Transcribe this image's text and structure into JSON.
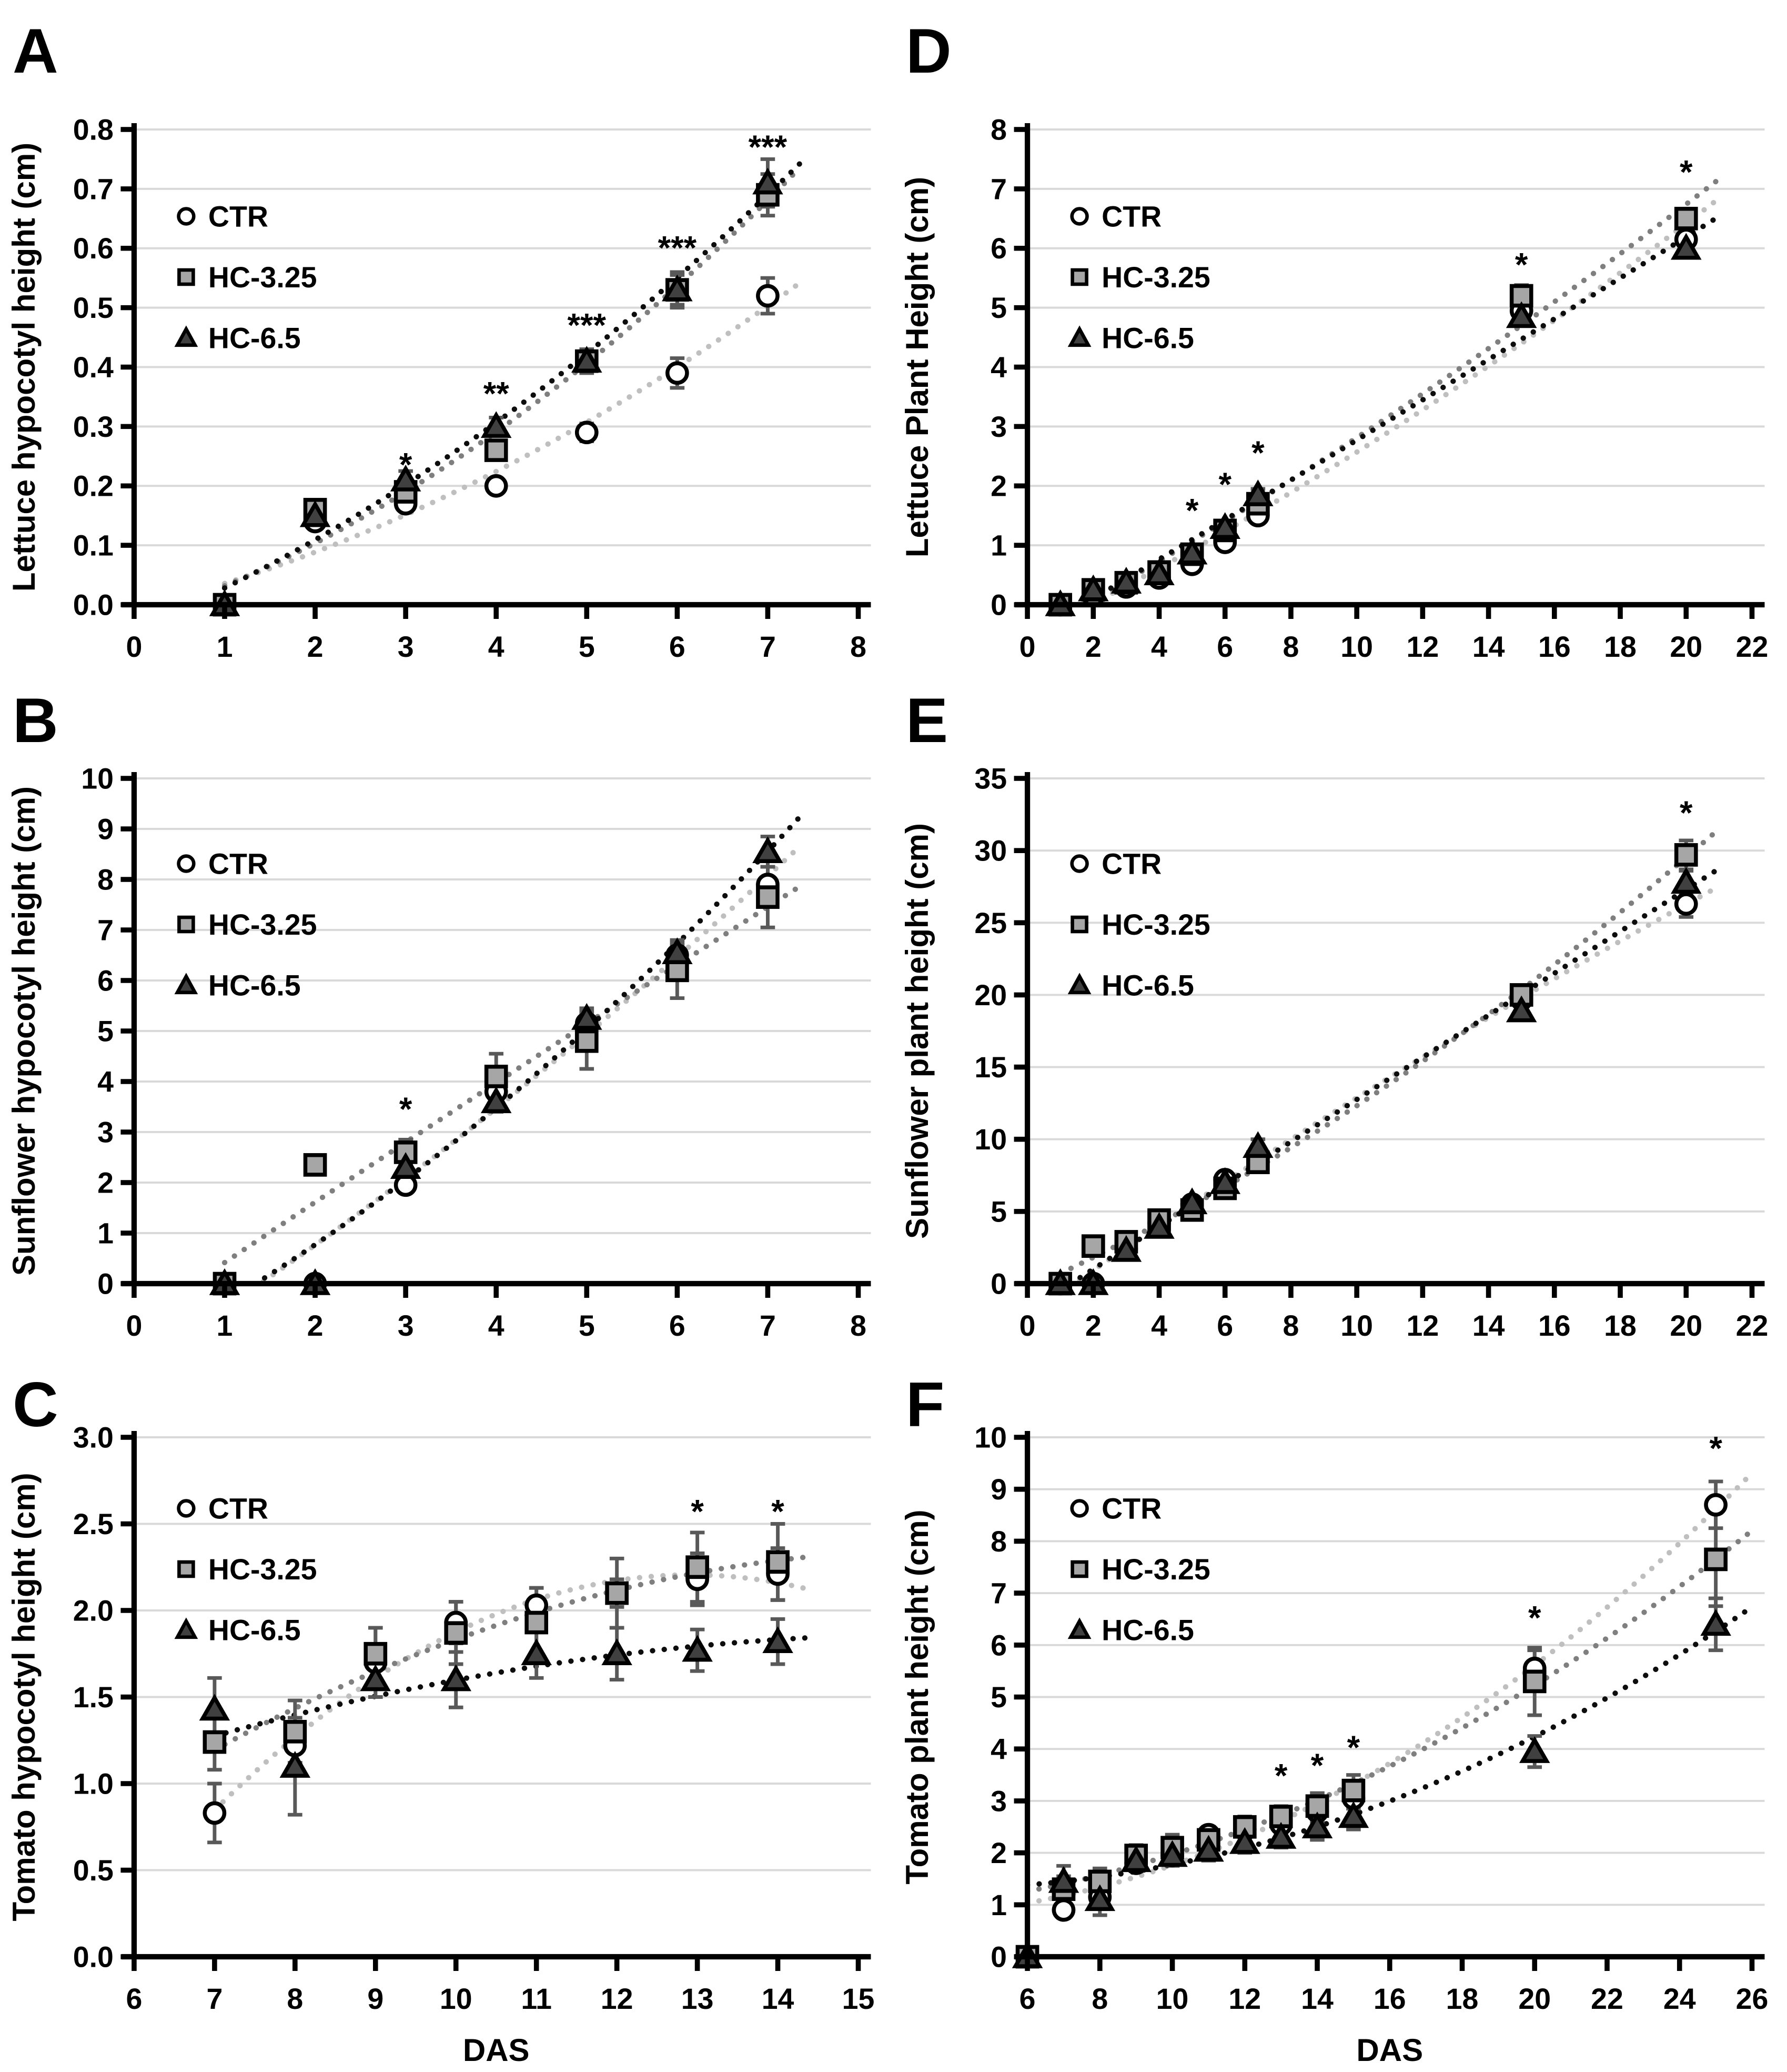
{
  "figure_title": "",
  "legend_labels": [
    "CTR",
    "HC-3.25",
    "HC-6.5"
  ],
  "colors": {
    "background": "#ffffff",
    "axis": "#000000",
    "gridline": "#d9d9d9",
    "error_bar": "#595959",
    "circle_fill": "#ffffff",
    "square_fill": "#a6a6a6",
    "triangle_fill": "#404040",
    "marker_stroke": "#000000",
    "trend_ctr": "#bfbfbf",
    "trend_hc325": "#7f7f7f",
    "trend_hc65": "#0d0d0d"
  },
  "chart_data": [
    {
      "panel_label": "A",
      "type": "scatter",
      "row": 1,
      "ylabel": "Lettuce hypocotyl height (cm)",
      "xlabel": "",
      "xlim": [
        0,
        8
      ],
      "xtick_step": 1,
      "ylim": [
        0,
        0.8
      ],
      "ytick_step": 0.1,
      "ydecimals": 1,
      "fit_exclude_zero": false,
      "series": [
        {
          "name": "CTR",
          "marker": "circle",
          "x": [
            1,
            2,
            3,
            4,
            5,
            6,
            7
          ],
          "y": [
            0,
            0.14,
            0.17,
            0.2,
            0.29,
            0.39,
            0.52
          ],
          "err": [
            0,
            0,
            0.012,
            0.012,
            0.015,
            0.025,
            0.03
          ]
        },
        {
          "name": "HC-3.25",
          "marker": "square",
          "x": [
            1,
            2,
            3,
            4,
            5,
            6,
            7
          ],
          "y": [
            0,
            0.16,
            0.19,
            0.26,
            0.41,
            0.53,
            0.69
          ],
          "err": [
            0,
            0,
            0.012,
            0.015,
            0.02,
            0.025,
            0.035
          ]
        },
        {
          "name": "HC-6.5",
          "marker": "triangle",
          "x": [
            1,
            2,
            3,
            4,
            5,
            6,
            7
          ],
          "y": [
            0,
            0.15,
            0.21,
            0.3,
            0.41,
            0.53,
            0.71
          ],
          "err": [
            0,
            0,
            0.015,
            0.015,
            0.02,
            0.03,
            0.04
          ]
        }
      ],
      "annotations": [
        {
          "x": 3,
          "y": 0.235,
          "text": "*"
        },
        {
          "x": 4,
          "y": 0.355,
          "text": "**"
        },
        {
          "x": 5,
          "y": 0.47,
          "text": "***"
        },
        {
          "x": 6,
          "y": 0.6,
          "text": "***"
        },
        {
          "x": 7,
          "y": 0.77,
          "text": "***"
        }
      ]
    },
    {
      "panel_label": "D",
      "type": "scatter",
      "row": 1,
      "ylabel": "Lettuce Plant Height (cm)",
      "xlabel": "",
      "xlim": [
        0,
        22
      ],
      "xtick_step": 2,
      "ylim": [
        0,
        8
      ],
      "ytick_step": 1,
      "ydecimals": 0,
      "fit_exclude_zero": false,
      "series": [
        {
          "name": "CTR",
          "marker": "circle",
          "x": [
            1,
            2,
            3,
            4,
            5,
            6,
            7,
            15,
            20
          ],
          "y": [
            0,
            0.15,
            0.3,
            0.45,
            0.68,
            1.05,
            1.5,
            4.95,
            6.15
          ],
          "err": [
            0,
            0,
            0,
            0.04,
            0.05,
            0.06,
            0.08,
            0.12,
            0.1
          ]
        },
        {
          "name": "HC-3.25",
          "marker": "square",
          "x": [
            1,
            2,
            3,
            4,
            5,
            6,
            7,
            15,
            20
          ],
          "y": [
            0,
            0.25,
            0.37,
            0.55,
            0.85,
            1.25,
            1.7,
            5.2,
            6.5
          ],
          "err": [
            0,
            0,
            0,
            0.04,
            0.05,
            0.06,
            0.08,
            0.18,
            0.12
          ]
        },
        {
          "name": "HC-6.5",
          "marker": "triangle",
          "x": [
            1,
            2,
            3,
            4,
            5,
            6,
            7,
            15,
            20
          ],
          "y": [
            0,
            0.25,
            0.38,
            0.52,
            0.87,
            1.3,
            1.85,
            4.85,
            6.0
          ],
          "err": [
            0,
            0,
            0,
            0.04,
            0.05,
            0.07,
            0.1,
            0.12,
            0.1
          ]
        }
      ],
      "annotations": [
        {
          "x": 5,
          "y": 1.58,
          "text": "*"
        },
        {
          "x": 6,
          "y": 2.02,
          "text": "*"
        },
        {
          "x": 7,
          "y": 2.55,
          "text": "*"
        },
        {
          "x": 15,
          "y": 5.72,
          "text": "*"
        },
        {
          "x": 20,
          "y": 7.28,
          "text": "*"
        }
      ]
    },
    {
      "panel_label": "B",
      "type": "scatter",
      "row": 2,
      "ylabel": "Sunflower hypocotyl height (cm)",
      "xlabel": "",
      "xlim": [
        0,
        8
      ],
      "xtick_step": 1,
      "ylim": [
        0,
        10
      ],
      "ytick_step": 1,
      "ydecimals": 0,
      "fit_exclude_zero": false,
      "series": [
        {
          "name": "CTR",
          "marker": "circle",
          "x": [
            1,
            2,
            3,
            4,
            5,
            6,
            7
          ],
          "y": [
            0,
            0,
            1.95,
            3.8,
            5.15,
            6.5,
            7.9
          ],
          "err": [
            0,
            0,
            0.15,
            0.2,
            0.25,
            0.2,
            0.35
          ]
        },
        {
          "name": "HC-3.25",
          "marker": "square",
          "x": [
            1,
            2,
            3,
            4,
            5,
            6,
            7
          ],
          "y": [
            0,
            2.35,
            2.6,
            4.1,
            4.8,
            6.2,
            7.65
          ],
          "err": [
            0,
            0,
            0.25,
            0.45,
            0.55,
            0.55,
            0.6
          ]
        },
        {
          "name": "HC-6.5",
          "marker": "triangle",
          "x": [
            1,
            2,
            3,
            4,
            5,
            6,
            7
          ],
          "y": [
            0,
            0,
            2.3,
            3.6,
            5.25,
            6.55,
            8.55
          ],
          "err": [
            0,
            0,
            0.25,
            0.2,
            0.2,
            0.25,
            0.3
          ]
        }
      ],
      "annotations": [
        {
          "x": 3,
          "y": 3.45,
          "text": "*"
        }
      ]
    },
    {
      "panel_label": "E",
      "type": "scatter",
      "row": 2,
      "ylabel": "Sunflower plant height (cm)",
      "xlabel": "",
      "xlim": [
        0,
        22
      ],
      "xtick_step": 2,
      "ylim": [
        0,
        35
      ],
      "ytick_step": 5,
      "ydecimals": 0,
      "fit_exclude_zero": false,
      "series": [
        {
          "name": "CTR",
          "marker": "circle",
          "x": [
            1,
            2,
            3,
            4,
            5,
            6,
            7,
            15,
            20
          ],
          "y": [
            0,
            0,
            2.4,
            4.2,
            5.5,
            7.2,
            8.6,
            19.7,
            26.3
          ],
          "err": [
            0,
            0,
            0.2,
            0.2,
            0.3,
            0.3,
            0.4,
            0.5,
            0.9
          ]
        },
        {
          "name": "HC-3.25",
          "marker": "square",
          "x": [
            1,
            2,
            3,
            4,
            5,
            6,
            7,
            15,
            20
          ],
          "y": [
            0,
            2.6,
            2.9,
            4.4,
            5.1,
            6.6,
            8.4,
            20.0,
            29.7
          ],
          "err": [
            0,
            0,
            0.2,
            0.3,
            0.3,
            0.3,
            0.4,
            0.6,
            1.0
          ]
        },
        {
          "name": "HC-6.5",
          "marker": "triangle",
          "x": [
            1,
            2,
            3,
            4,
            5,
            6,
            7,
            15,
            20
          ],
          "y": [
            0,
            0,
            2.3,
            3.9,
            5.6,
            7.0,
            9.5,
            18.9,
            27.8
          ],
          "err": [
            0,
            0,
            0.2,
            0.3,
            0.3,
            0.3,
            0.5,
            0.5,
            0.8
          ]
        }
      ],
      "annotations": [
        {
          "x": 20,
          "y": 32.6,
          "text": "*"
        }
      ]
    },
    {
      "panel_label": "C",
      "type": "scatter",
      "row": 3,
      "ylabel": "Tomato hypocotyl height (cm)",
      "xlabel": "DAS",
      "xlim": [
        6,
        15
      ],
      "xtick_step": 1,
      "ylim": [
        0,
        3
      ],
      "ytick_step": 0.5,
      "ydecimals": 1,
      "fit_exclude_zero": false,
      "series": [
        {
          "name": "CTR",
          "marker": "circle",
          "x": [
            7,
            8,
            9,
            10,
            11,
            12,
            13,
            14
          ],
          "y": [
            0.83,
            1.22,
            1.7,
            1.93,
            2.03,
            2.1,
            2.18,
            2.21
          ],
          "err": [
            0.17,
            0.1,
            0.2,
            0.12,
            0.1,
            0.08,
            0.15,
            0.15
          ]
        },
        {
          "name": "HC-3.25",
          "marker": "square",
          "x": [
            7,
            8,
            9,
            10,
            11,
            12,
            13,
            14
          ],
          "y": [
            1.24,
            1.3,
            1.75,
            1.87,
            1.93,
            2.1,
            2.25,
            2.28
          ],
          "err": [
            0.16,
            0.18,
            0.15,
            0.18,
            0.2,
            0.2,
            0.2,
            0.22
          ]
        },
        {
          "name": "HC-6.5",
          "marker": "triangle",
          "x": [
            7,
            8,
            9,
            10,
            11,
            12,
            13,
            14
          ],
          "y": [
            1.43,
            1.1,
            1.6,
            1.6,
            1.75,
            1.75,
            1.77,
            1.82
          ],
          "err": [
            0.18,
            0.28,
            0.1,
            0.16,
            0.14,
            0.15,
            0.12,
            0.13
          ]
        }
      ],
      "annotations": [
        {
          "x": 13,
          "y": 2.57,
          "text": "*"
        },
        {
          "x": 14,
          "y": 2.57,
          "text": "*"
        }
      ]
    },
    {
      "panel_label": "F",
      "type": "scatter",
      "row": 3,
      "ylabel": "Tomato plant height (cm)",
      "xlabel": "DAS",
      "xlim": [
        6,
        26
      ],
      "xtick_step": 2,
      "ylim": [
        0,
        10
      ],
      "ytick_step": 1,
      "ydecimals": 0,
      "fit_exclude_zero": true,
      "series": [
        {
          "name": "CTR",
          "marker": "circle",
          "x": [
            6,
            7,
            8,
            9,
            10,
            11,
            12,
            13,
            14,
            15,
            20,
            25
          ],
          "y": [
            0,
            0.9,
            1.15,
            1.8,
            1.95,
            2.35,
            2.45,
            2.55,
            2.8,
            3.05,
            5.55,
            8.7
          ],
          "err": [
            0,
            0.15,
            0.12,
            0.15,
            0.15,
            0.15,
            0.15,
            0.15,
            0.2,
            0.2,
            0.35,
            0.45
          ]
        },
        {
          "name": "HC-3.25",
          "marker": "square",
          "x": [
            6,
            7,
            8,
            9,
            10,
            11,
            12,
            13,
            14,
            15,
            20,
            25
          ],
          "y": [
            0,
            1.3,
            1.45,
            1.95,
            2.1,
            2.25,
            2.5,
            2.7,
            2.9,
            3.2,
            5.3,
            7.65
          ],
          "err": [
            0,
            0.25,
            0.25,
            0.2,
            0.25,
            0.25,
            0.2,
            0.2,
            0.25,
            0.3,
            0.65,
            0.9
          ]
        },
        {
          "name": "HC-6.5",
          "marker": "triangle",
          "x": [
            6,
            7,
            8,
            9,
            10,
            11,
            12,
            13,
            14,
            15,
            20,
            25
          ],
          "y": [
            0,
            1.45,
            1.1,
            1.85,
            1.95,
            2.05,
            2.2,
            2.3,
            2.5,
            2.7,
            3.95,
            6.4
          ],
          "err": [
            0,
            0.3,
            0.3,
            0.2,
            0.2,
            0.2,
            0.2,
            0.2,
            0.25,
            0.25,
            0.3,
            0.5
          ]
        }
      ],
      "annotations": [
        {
          "x": 13,
          "y": 3.48,
          "text": "*"
        },
        {
          "x": 14,
          "y": 3.68,
          "text": "*"
        },
        {
          "x": 15,
          "y": 4.02,
          "text": "*"
        },
        {
          "x": 20,
          "y": 6.52,
          "text": "*"
        },
        {
          "x": 25,
          "y": 9.78,
          "text": "*"
        }
      ]
    }
  ]
}
